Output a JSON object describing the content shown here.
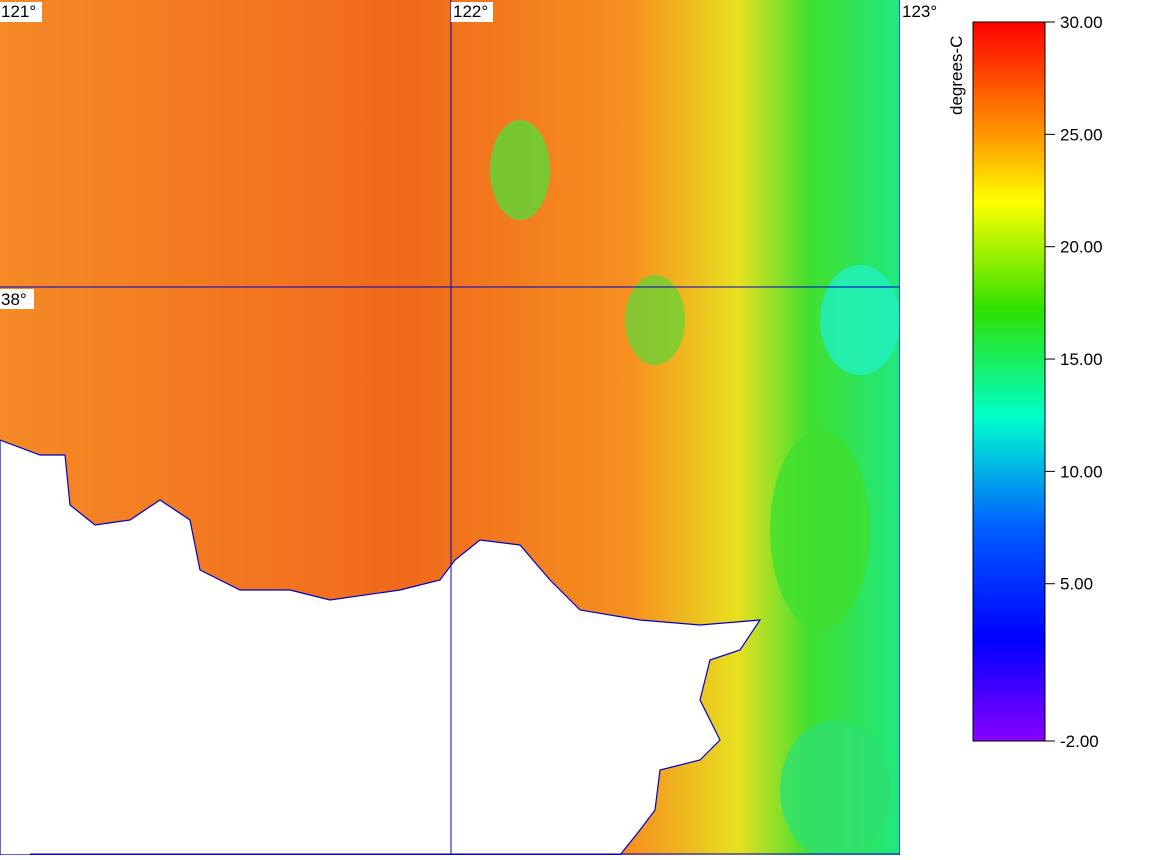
{
  "map": {
    "longitude_labels": [
      "121°",
      "122°",
      "123°"
    ],
    "latitude_labels": [
      "38°"
    ]
  },
  "colorbar": {
    "title": "degrees-C",
    "ticks": [
      {
        "value": 30,
        "label": "30.00"
      },
      {
        "value": 25,
        "label": "25.00"
      },
      {
        "value": 20,
        "label": "20.00"
      },
      {
        "value": 15,
        "label": "15.00"
      },
      {
        "value": 10,
        "label": "10.00"
      },
      {
        "value": 5,
        "label": "5.00"
      },
      {
        "value": -2,
        "label": "-2.00"
      }
    ]
  }
}
